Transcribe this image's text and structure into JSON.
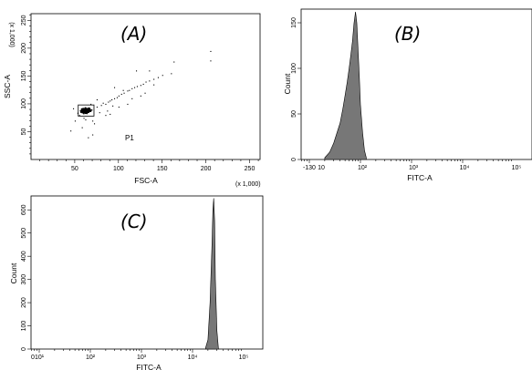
{
  "chart_data": [
    {
      "type": "scatter",
      "panel_label": "(A)",
      "xlabel": "FSC-A",
      "ylabel": "SSC-A",
      "x_multiplier": "(x 1,000)",
      "y_multiplier": "(x 1,000)",
      "xlim": [
        0,
        262
      ],
      "ylim": [
        0,
        262
      ],
      "xticks": [
        50,
        100,
        150,
        200,
        250
      ],
      "yticks": [
        50,
        100,
        150,
        200,
        250
      ],
      "gate": {
        "name": "P1",
        "x": [
          54,
          72
        ],
        "y": [
          78,
          98
        ]
      },
      "cluster": {
        "center": [
          62,
          89
        ],
        "spread": [
          5,
          4
        ],
        "count": 340
      },
      "outliers": [
        [
          45,
          52
        ],
        [
          58,
          58
        ],
        [
          70,
          70
        ],
        [
          75,
          95
        ],
        [
          80,
          98
        ],
        [
          82,
          102
        ],
        [
          85,
          100
        ],
        [
          88,
          104
        ],
        [
          90,
          106
        ],
        [
          92,
          108
        ],
        [
          95,
          110
        ],
        [
          98,
          112
        ],
        [
          100,
          115
        ],
        [
          103,
          118
        ],
        [
          106,
          120
        ],
        [
          110,
          124
        ],
        [
          112,
          125
        ],
        [
          115,
          128
        ],
        [
          118,
          130
        ],
        [
          121,
          132
        ],
        [
          125,
          134
        ],
        [
          128,
          136
        ],
        [
          131,
          140
        ],
        [
          135,
          142
        ],
        [
          140,
          145
        ],
        [
          145,
          148
        ],
        [
          150,
          152
        ],
        [
          160,
          155
        ],
        [
          95,
          130
        ],
        [
          120,
          160
        ],
        [
          135,
          160
        ],
        [
          163,
          176
        ],
        [
          205,
          178
        ],
        [
          205,
          195
        ],
        [
          65,
          40
        ],
        [
          70,
          45
        ],
        [
          62,
          72
        ],
        [
          60,
          75
        ],
        [
          72,
          65
        ],
        [
          85,
          80
        ],
        [
          90,
          82
        ],
        [
          78,
          85
        ],
        [
          100,
          95
        ],
        [
          110,
          100
        ],
        [
          115,
          110
        ],
        [
          105,
          125
        ],
        [
          125,
          115
        ],
        [
          130,
          120
        ],
        [
          140,
          135
        ],
        [
          75,
          108
        ],
        [
          68,
          100
        ],
        [
          55,
          80
        ],
        [
          50,
          70
        ],
        [
          53,
          84
        ],
        [
          48,
          92
        ],
        [
          87,
          88
        ],
        [
          93,
          97
        ]
      ]
    },
    {
      "type": "area",
      "panel_label": "(B)",
      "xlabel": "FITC-A",
      "ylabel": "Count",
      "x_scale": "log",
      "xlim": [
        -13,
        100000
      ],
      "ylim": [
        0,
        165
      ],
      "xticks": [
        "-13",
        "0",
        "10",
        "10²",
        "10³",
        "10⁴",
        "10⁵"
      ],
      "yticks": [
        0,
        50,
        100,
        150
      ],
      "x": [
        20,
        25,
        30,
        35,
        40,
        45,
        50,
        55,
        60,
        65,
        70,
        75,
        80,
        85,
        90,
        95,
        100,
        110,
        120,
        130
      ],
      "counts": [
        2,
        8,
        18,
        30,
        40,
        55,
        70,
        85,
        100,
        115,
        130,
        150,
        162,
        150,
        120,
        90,
        60,
        30,
        10,
        2
      ]
    },
    {
      "type": "area",
      "panel_label": "(C)",
      "xlabel": "FITC-A",
      "ylabel": "Count",
      "x_scale": "log",
      "xlim": [
        0,
        100000
      ],
      "ylim": [
        0,
        660
      ],
      "xticks": [
        "0",
        "10¹",
        "10²",
        "10³",
        "10⁴",
        "10⁵"
      ],
      "yticks": [
        0,
        100,
        200,
        300,
        400,
        500,
        600
      ],
      "x": [
        18000,
        20000,
        22000,
        24000,
        25000,
        26000,
        27000,
        28000,
        30000,
        32000
      ],
      "counts": [
        5,
        40,
        200,
        450,
        600,
        650,
        550,
        300,
        80,
        5
      ]
    }
  ]
}
